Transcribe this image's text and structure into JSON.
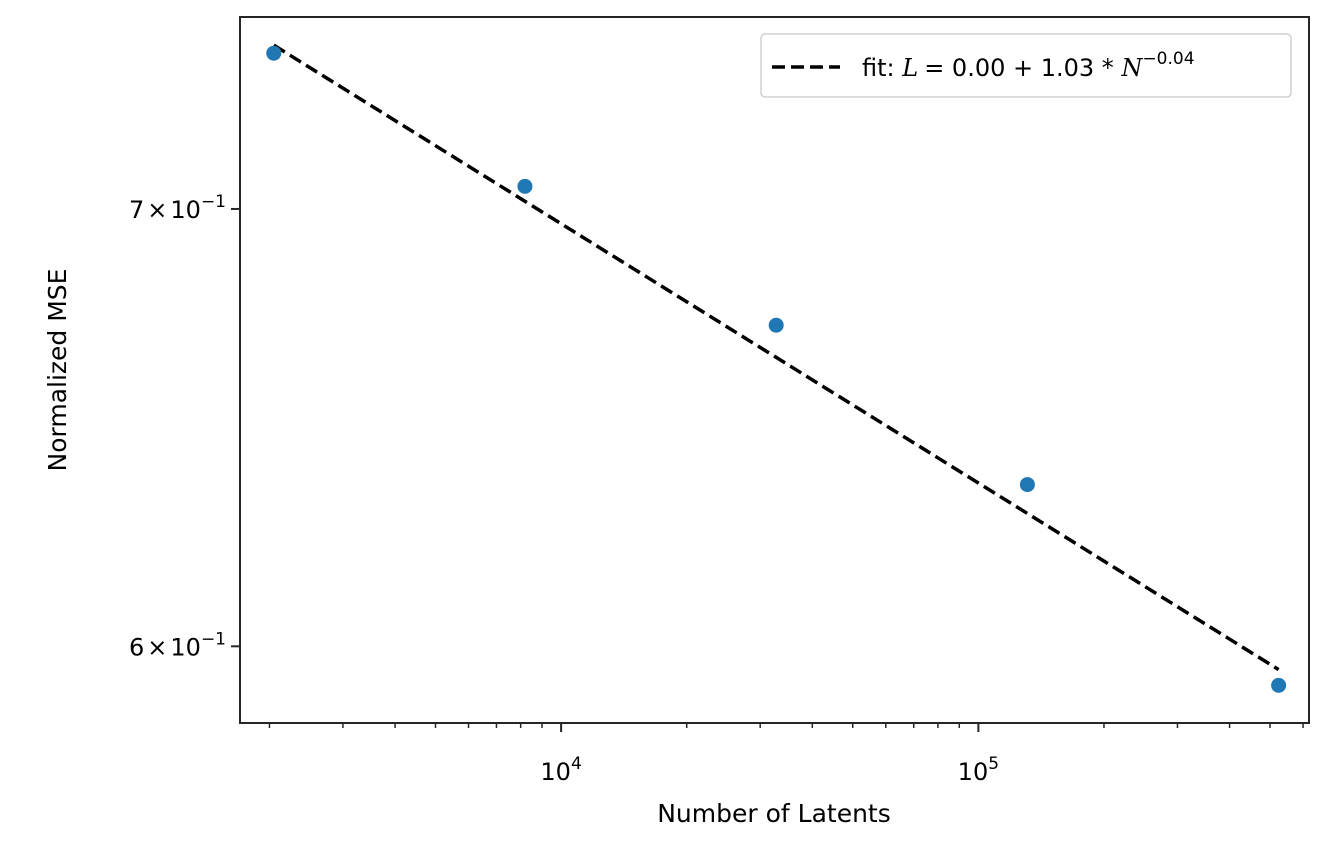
{
  "chart_data": {
    "type": "scatter",
    "xlabel": "Number of Latents",
    "ylabel": "Normalized MSE",
    "x_scale": "log",
    "y_scale": "log",
    "xlim": [
      1700,
      620000
    ],
    "ylim": [
      0.584,
      0.749
    ],
    "grid": false,
    "legend_position": "top-right",
    "x_major_ticks": [
      {
        "value": 10000,
        "base": "10",
        "exp": "4"
      },
      {
        "value": 100000,
        "base": "10",
        "exp": "5"
      }
    ],
    "x_minor_ticks": [
      2000,
      3000,
      4000,
      5000,
      6000,
      7000,
      8000,
      9000,
      20000,
      30000,
      40000,
      50000,
      60000,
      70000,
      80000,
      90000,
      200000,
      300000,
      400000,
      500000,
      600000
    ],
    "y_major_ticks": [
      {
        "value": 0.7,
        "mant": "7",
        "times": "×",
        "base": "10",
        "exp": "−1"
      },
      {
        "value": 0.6,
        "mant": "6",
        "times": "×",
        "base": "10",
        "exp": "−1"
      }
    ],
    "series": [
      {
        "kind": "scatter",
        "color": "#1f77b4",
        "points": [
          {
            "x": 2048,
            "y": 0.7395
          },
          {
            "x": 8192,
            "y": 0.7056
          },
          {
            "x": 32768,
            "y": 0.6719
          },
          {
            "x": 131072,
            "y": 0.6352
          },
          {
            "x": 524288,
            "y": 0.5918
          }
        ]
      },
      {
        "kind": "line",
        "name": "fit",
        "color": "#000000",
        "dash": "dashed",
        "x_range": [
          2048,
          524288
        ],
        "y_range": [
          0.7416,
          0.5951
        ]
      }
    ],
    "legend": {
      "prefix": "fit: ",
      "L": "L",
      "eq": "= 0.00 + 1.03 * ",
      "N": "N",
      "exp": "−0.04"
    }
  }
}
